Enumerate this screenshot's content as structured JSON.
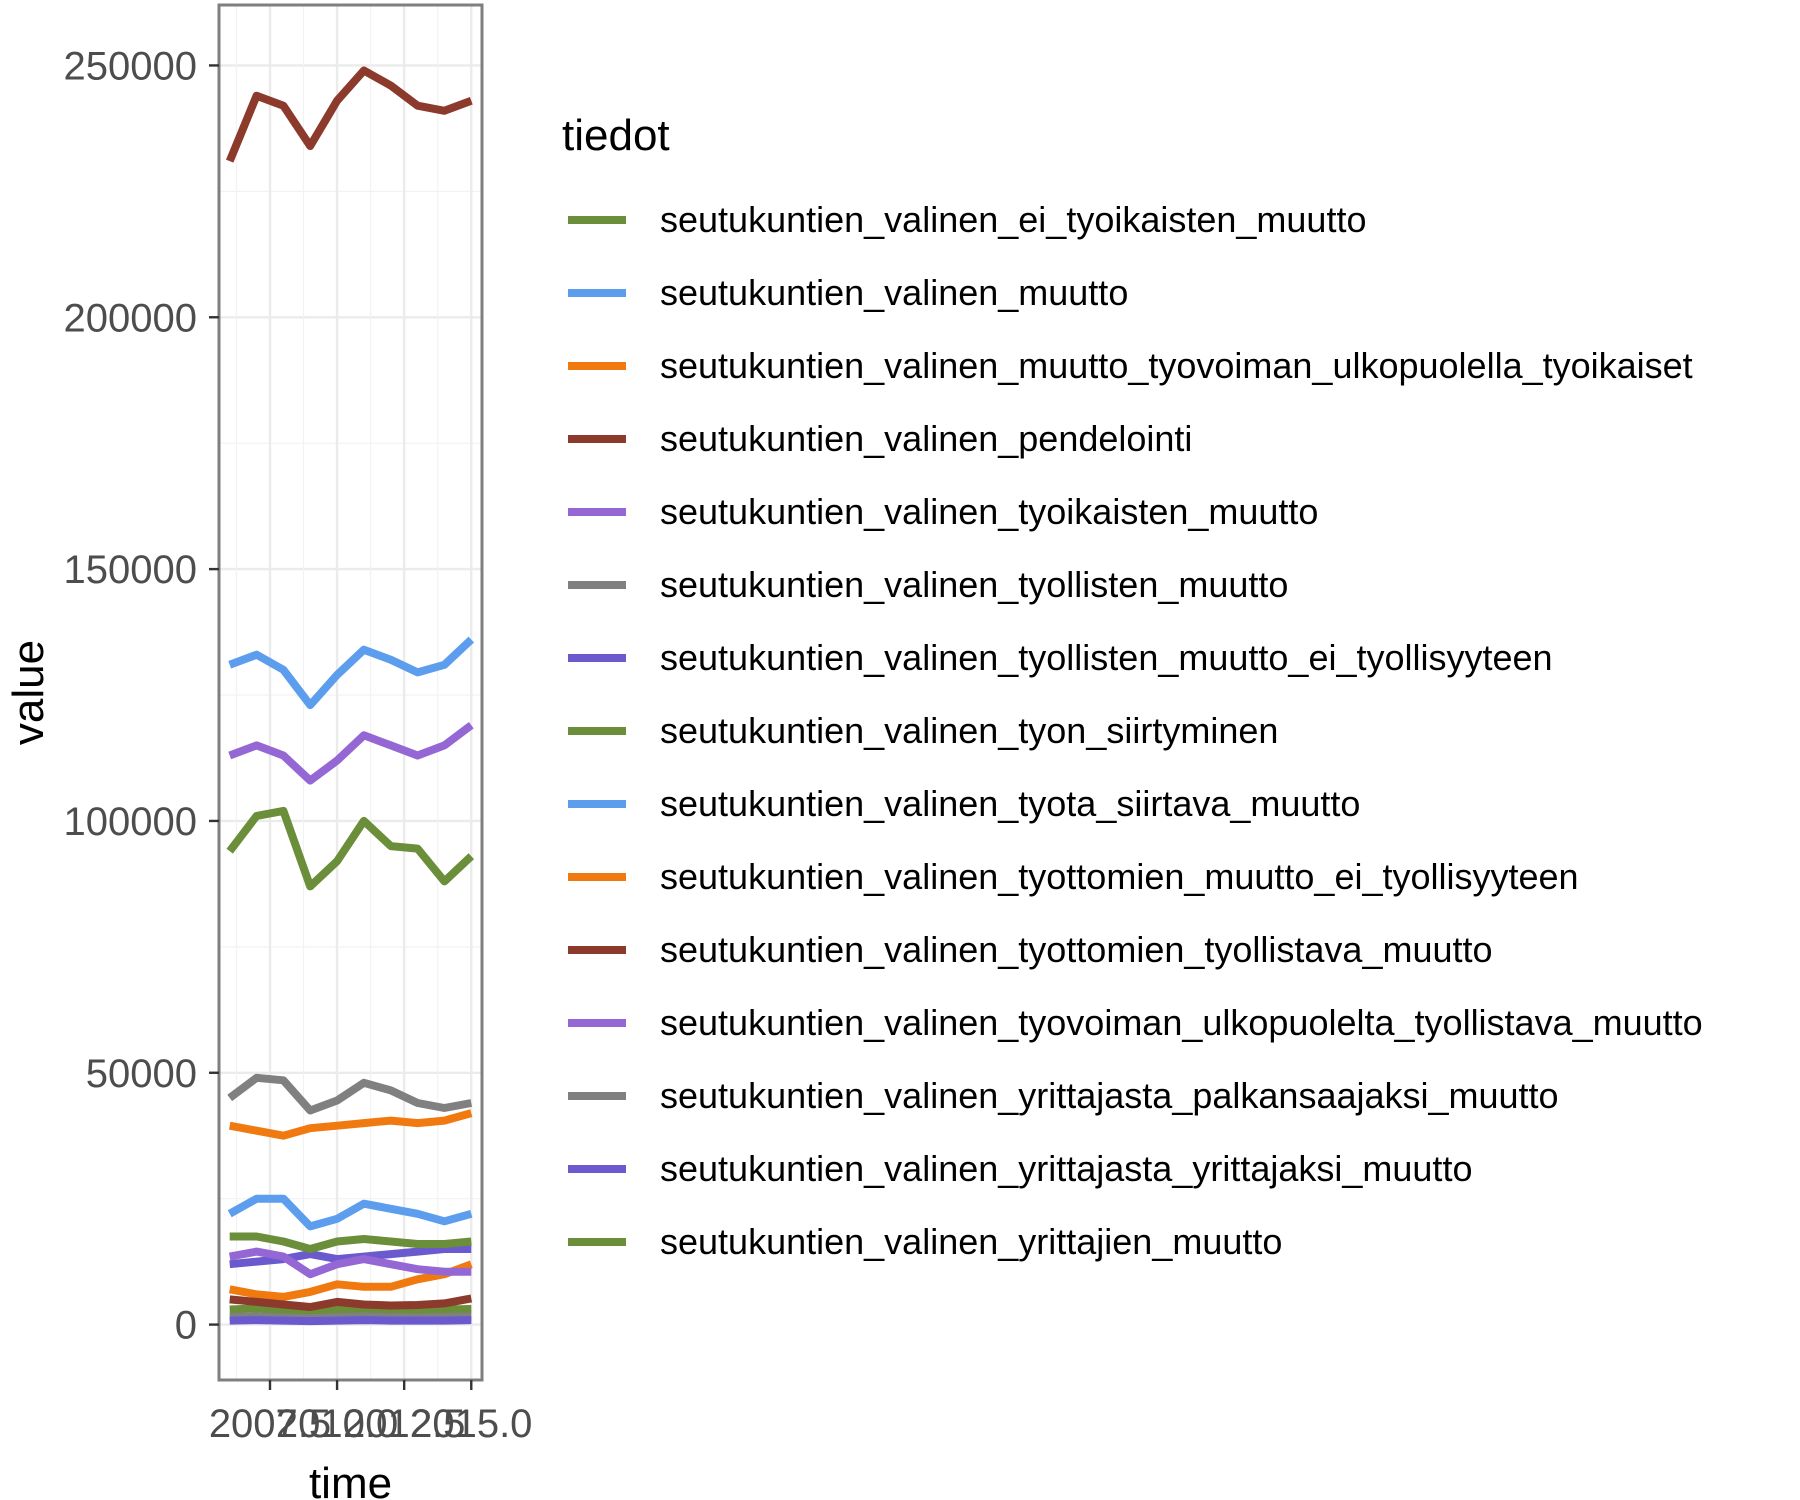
{
  "chart_data": {
    "type": "line",
    "xlabel": "time",
    "ylabel": "value",
    "x": [
      2006,
      2007,
      2008,
      2009,
      2010,
      2011,
      2012,
      2013,
      2014,
      2015
    ],
    "x_tick_labels": [
      "2007.5",
      "2010.0",
      "2012.5",
      "2015.0"
    ],
    "x_ticks": [
      2007.5,
      2010.0,
      2012.5,
      2015.0
    ],
    "xlim": [
      2005.6,
      2015.4
    ],
    "y_ticks": [
      0,
      50000,
      100000,
      150000,
      200000,
      250000
    ],
    "y_tick_labels": [
      "0",
      "50000",
      "100000",
      "150000",
      "200000",
      "250000"
    ],
    "ylim": [
      -11000,
      262000
    ],
    "grid": true,
    "legend": {
      "title": "tiedot",
      "position": "right"
    },
    "series": [
      {
        "name": "seutukuntien_valinen_ei_tyoikaisten_muutto",
        "color": "#6b8e3a",
        "values": [
          3000,
          3200,
          2800,
          2600,
          2900,
          3100,
          3000,
          2900,
          3000,
          3100
        ]
      },
      {
        "name": "seutukuntien_valinen_muutto",
        "color": "#5c9ded",
        "values": [
          131000,
          133000,
          130000,
          123000,
          129000,
          134000,
          132000,
          129500,
          131000,
          136000
        ]
      },
      {
        "name": "seutukuntien_valinen_muutto_tyovoiman_ulkopuolella_tyoikaiset",
        "color": "#f07a10",
        "values": [
          7000,
          6000,
          5500,
          6500,
          8000,
          7500,
          7500,
          9000,
          10000,
          12000
        ]
      },
      {
        "name": "seutukuntien_valinen_pendelointi",
        "color": "#8b3a2b",
        "values": [
          231000,
          244000,
          242000,
          234000,
          243000,
          249000,
          246000,
          242000,
          241000,
          243000
        ]
      },
      {
        "name": "seutukuntien_valinen_tyoikaisten_muutto",
        "color": "#9467d4",
        "values": [
          113000,
          115000,
          113000,
          108000,
          112000,
          117000,
          115000,
          113000,
          115000,
          119000
        ]
      },
      {
        "name": "seutukuntien_valinen_tyollisten_muutto",
        "color": "#808080",
        "values": [
          1500,
          1600,
          1400,
          1300,
          1500,
          1600,
          1500,
          1400,
          1500,
          1600
        ]
      },
      {
        "name": "seutukuntien_valinen_tyollisten_muutto_ei_tyollisyyteen",
        "color": "#6a5acd",
        "values": [
          12000,
          12500,
          13000,
          14000,
          13000,
          13500,
          14000,
          14500,
          15000,
          15000
        ]
      },
      {
        "name": "seutukuntien_valinen_tyon_siirtyminen",
        "color": "#6b8e3a",
        "values": [
          94000,
          101000,
          102000,
          87000,
          92000,
          100000,
          95000,
          94500,
          88000,
          93000
        ]
      },
      {
        "name": "seutukuntien_valinen_tyota_siirtava_muutto",
        "color": "#5c9ded",
        "values": [
          22000,
          25000,
          25000,
          19500,
          21000,
          24000,
          23000,
          22000,
          20500,
          22000
        ]
      },
      {
        "name": "seutukuntien_valinen_tyottomien_muutto_ei_tyollisyyteen",
        "color": "#f07a10",
        "values": [
          39500,
          38500,
          37500,
          39000,
          39500,
          40000,
          40500,
          40000,
          40500,
          42000
        ]
      },
      {
        "name": "seutukuntien_valinen_tyottomien_tyollistava_muutto",
        "color": "#8b3a2b",
        "values": [
          5000,
          4500,
          4000,
          3500,
          4500,
          4000,
          3800,
          3900,
          4200,
          5200
        ]
      },
      {
        "name": "seutukuntien_valinen_tyovoiman_ulkopuolelta_tyollistava_muutto",
        "color": "#9467d4",
        "values": [
          13500,
          14500,
          13500,
          10000,
          12000,
          13000,
          12000,
          11000,
          10500,
          10500
        ]
      },
      {
        "name": "seutukuntien_valinen_yrittajasta_palkansaajaksi_muutto",
        "color": "#808080",
        "values": [
          45000,
          49000,
          48500,
          42500,
          44500,
          48000,
          46500,
          44000,
          43000,
          44000
        ]
      },
      {
        "name": "seutukuntien_valinen_yrittajasta_yrittajaksi_muutto",
        "color": "#6a5acd",
        "values": [
          800,
          900,
          800,
          700,
          800,
          900,
          800,
          800,
          800,
          900
        ]
      },
      {
        "name": "seutukuntien_valinen_yrittajien_muutto",
        "color": "#6b8e3a",
        "values": [
          17500,
          17500,
          16500,
          15000,
          16500,
          17000,
          16500,
          16000,
          16000,
          16500
        ]
      }
    ]
  }
}
